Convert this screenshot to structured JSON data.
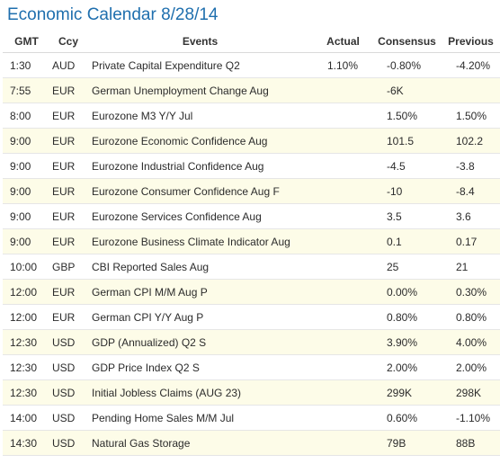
{
  "title": "Economic Calendar 8/28/14",
  "columns": {
    "gmt": "GMT",
    "ccy": "Ccy",
    "events": "Events",
    "actual": "Actual",
    "consensus": "Consensus",
    "previous": "Previous"
  },
  "rows": [
    {
      "gmt": "1:30",
      "ccy": "AUD",
      "event": "Private Capital Expenditure Q2",
      "actual": "1.10%",
      "consensus": "-0.80%",
      "previous": "-4.20%"
    },
    {
      "gmt": "7:55",
      "ccy": "EUR",
      "event": "German Unemployment Change Aug",
      "actual": "",
      "consensus": "-6K",
      "previous": ""
    },
    {
      "gmt": "8:00",
      "ccy": "EUR",
      "event": "Eurozone M3 Y/Y Jul",
      "actual": "",
      "consensus": "1.50%",
      "previous": "1.50%"
    },
    {
      "gmt": "9:00",
      "ccy": "EUR",
      "event": "Eurozone Economic Confidence Aug",
      "actual": "",
      "consensus": "101.5",
      "previous": "102.2"
    },
    {
      "gmt": "9:00",
      "ccy": "EUR",
      "event": "Eurozone Industrial Confidence Aug",
      "actual": "",
      "consensus": "-4.5",
      "previous": "-3.8"
    },
    {
      "gmt": "9:00",
      "ccy": "EUR",
      "event": "Eurozone Consumer Confidence Aug F",
      "actual": "",
      "consensus": "-10",
      "previous": "-8.4"
    },
    {
      "gmt": "9:00",
      "ccy": "EUR",
      "event": "Eurozone Services Confidence Aug",
      "actual": "",
      "consensus": "3.5",
      "previous": "3.6"
    },
    {
      "gmt": "9:00",
      "ccy": "EUR",
      "event": "Eurozone Business Climate Indicator Aug",
      "actual": "",
      "consensus": "0.1",
      "previous": "0.17"
    },
    {
      "gmt": "10:00",
      "ccy": "GBP",
      "event": "CBI Reported Sales Aug",
      "actual": "",
      "consensus": "25",
      "previous": "21"
    },
    {
      "gmt": "12:00",
      "ccy": "EUR",
      "event": "German CPI M/M Aug P",
      "actual": "",
      "consensus": "0.00%",
      "previous": "0.30%"
    },
    {
      "gmt": "12:00",
      "ccy": "EUR",
      "event": "German CPI Y/Y Aug P",
      "actual": "",
      "consensus": "0.80%",
      "previous": "0.80%"
    },
    {
      "gmt": "12:30",
      "ccy": "USD",
      "event": "GDP (Annualized) Q2 S",
      "actual": "",
      "consensus": "3.90%",
      "previous": "4.00%"
    },
    {
      "gmt": "12:30",
      "ccy": "USD",
      "event": "GDP Price Index Q2 S",
      "actual": "",
      "consensus": "2.00%",
      "previous": "2.00%"
    },
    {
      "gmt": "12:30",
      "ccy": "USD",
      "event": "Initial Jobless Claims (AUG 23)",
      "actual": "",
      "consensus": "299K",
      "previous": "298K"
    },
    {
      "gmt": "14:00",
      "ccy": "USD",
      "event": "Pending Home Sales M/M Jul",
      "actual": "",
      "consensus": "0.60%",
      "previous": "-1.10%"
    },
    {
      "gmt": "14:30",
      "ccy": "USD",
      "event": "Natural Gas Storage",
      "actual": "",
      "consensus": "79B",
      "previous": "88B"
    }
  ],
  "colors": {
    "title": "#1f6fae",
    "stripe": "#fdfce8",
    "text": "#2b2b2b"
  }
}
